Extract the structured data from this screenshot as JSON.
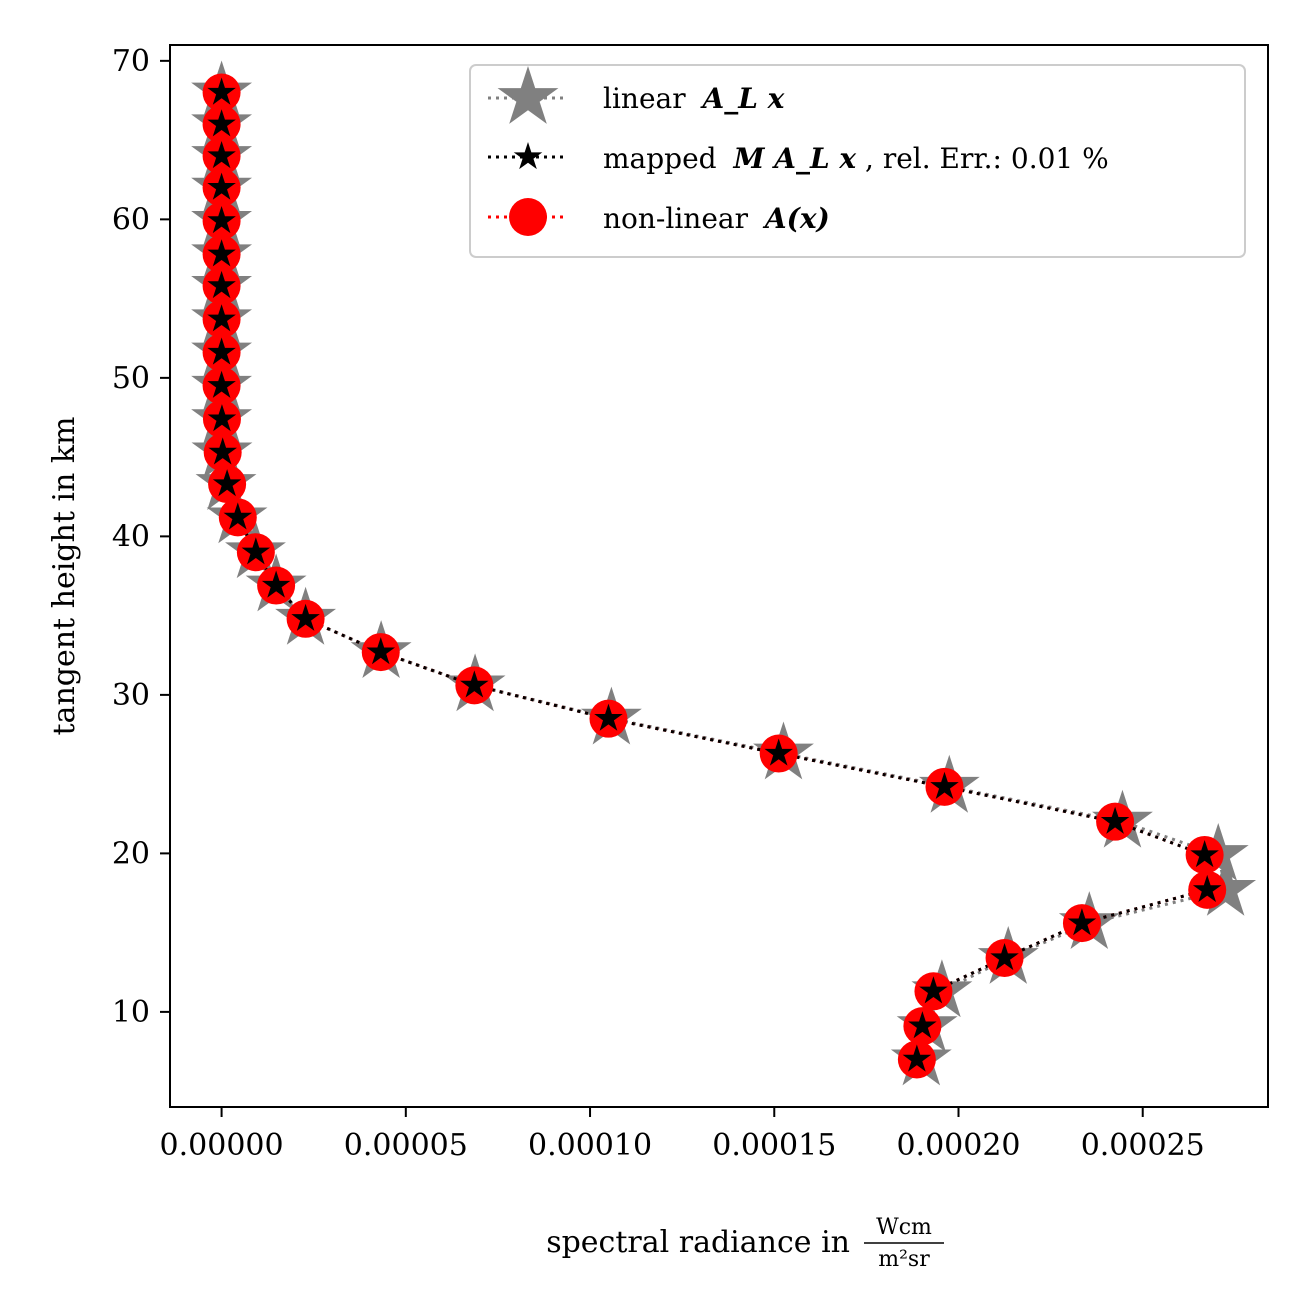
{
  "chart_data": {
    "type": "line",
    "xlabel": "spectral radiance in",
    "xlabel_unit_numerator": "Wcm",
    "xlabel_unit_denominator": "m²sr",
    "ylabel": "tangent height in km",
    "xlim": [
      -1.4e-05,
      0.000284
    ],
    "ylim": [
      4,
      71
    ],
    "x_ticks": [
      0,
      5e-05,
      0.0001,
      0.00015,
      0.0002,
      0.00025
    ],
    "x_tick_labels": [
      "0.00000",
      "0.00005",
      "0.00010",
      "0.00015",
      "0.00020",
      "0.00025"
    ],
    "y_ticks": [
      10,
      20,
      30,
      40,
      50,
      60,
      70
    ],
    "y_tick_labels": [
      "10",
      "20",
      "30",
      "40",
      "50",
      "60",
      "70"
    ],
    "legend_position": "top-right",
    "y": [
      7.0,
      9.1,
      11.3,
      13.4,
      15.6,
      17.7,
      19.9,
      22.0,
      24.2,
      26.3,
      28.5,
      30.6,
      32.7,
      34.8,
      36.9,
      39.0,
      41.2,
      43.3,
      45.3,
      47.4,
      49.5,
      51.6,
      53.7,
      55.8,
      57.8,
      59.9,
      62.0,
      64.0,
      66.0,
      68.0
    ],
    "series": [
      {
        "name": "linear",
        "name_math": "A_L x",
        "color": "#808080",
        "marker": "star-large",
        "linestyle": "dotted",
        "x": [
          0.0001899,
          0.0001915,
          0.0001955,
          0.0002135,
          0.0002355,
          0.0002725,
          0.0002705,
          0.0002445,
          0.0001975,
          0.0001525,
          0.0001058,
          6.88e-05,
          4.33e-05,
          2.28e-05,
          1.48e-05,
          9.2e-06,
          4.2e-06,
          1.2e-06,
          1e-07,
          0.0,
          0.0,
          0.0,
          0.0,
          0.0,
          0.0,
          0.0,
          0.0,
          0.0,
          0.0,
          0.0
        ]
      },
      {
        "name": "mapped",
        "name_math": "M A_L x",
        "name_suffix": ", rel. Err.: 0.01 %",
        "color": "#000000",
        "marker": "star-small",
        "linestyle": "dotted",
        "x": [
          0.0001887,
          0.0001902,
          0.0001932,
          0.0002125,
          0.0002335,
          0.0002675,
          0.0002668,
          0.0002425,
          0.0001962,
          0.0001512,
          0.000105,
          6.86e-05,
          4.32e-05,
          2.28e-05,
          1.48e-05,
          9.3e-06,
          4.4e-06,
          1.5e-06,
          3e-07,
          1e-07,
          0.0,
          0.0,
          0.0,
          0.0,
          0.0,
          0.0,
          0.0,
          0.0,
          0.0,
          0.0
        ]
      },
      {
        "name": "non-linear",
        "name_math": "A(x)",
        "color": "#ff0000",
        "marker": "circle",
        "linestyle": "dotted",
        "x": [
          0.0001887,
          0.0001902,
          0.0001932,
          0.0002125,
          0.0002335,
          0.0002675,
          0.0002668,
          0.0002425,
          0.0001962,
          0.0001512,
          0.000105,
          6.86e-05,
          4.32e-05,
          2.28e-05,
          1.48e-05,
          9.3e-06,
          4.4e-06,
          1.5e-06,
          3e-07,
          1e-07,
          0.0,
          0.0,
          0.0,
          0.0,
          0.0,
          0.0,
          0.0,
          0.0,
          0.0,
          0.0
        ]
      }
    ]
  }
}
